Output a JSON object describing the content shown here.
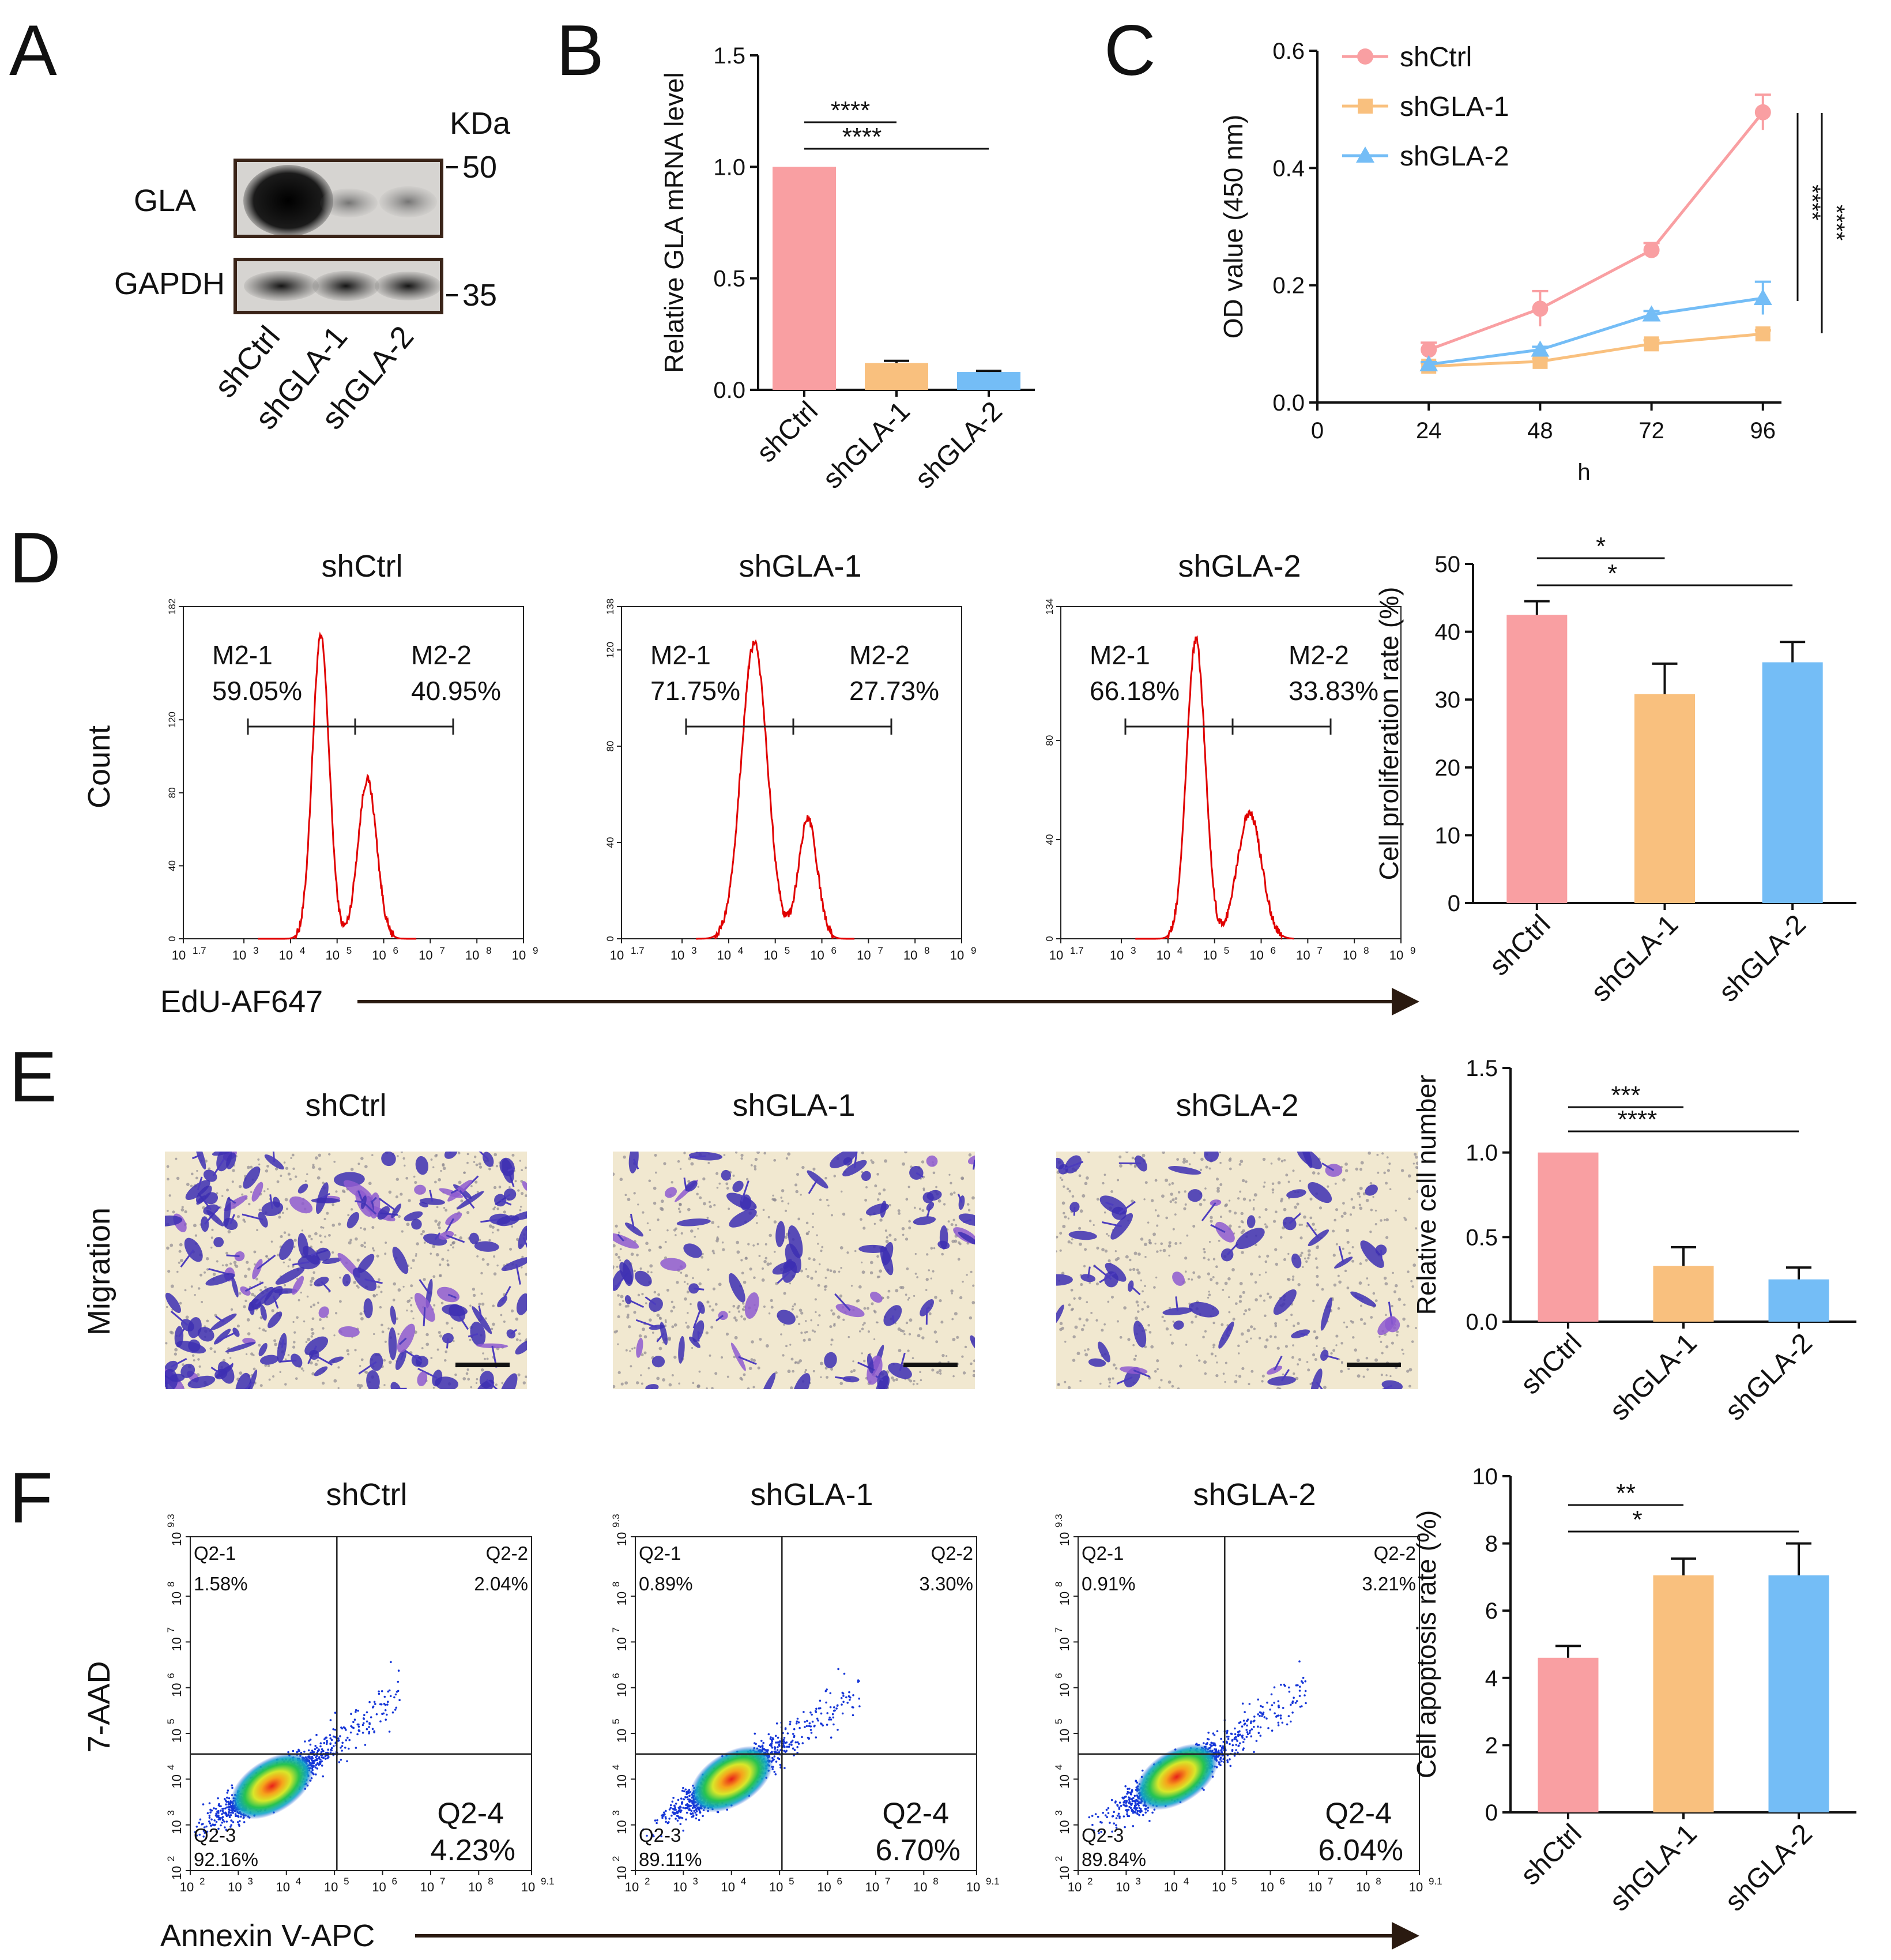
{
  "panel_letters": {
    "A": "A",
    "B": "B",
    "C": "C",
    "D": "D",
    "E": "E",
    "F": "F"
  },
  "colors": {
    "shCtrl": "#f99fa2",
    "shGLA1": "#f9c07e",
    "shGLA2": "#74bdf6",
    "hist": "#e00000",
    "arrow": "#2a1a10"
  },
  "panel_a": {
    "kda_label": "KDa",
    "bands": [
      "GLA",
      "GAPDH"
    ],
    "markers": [
      "50",
      "35"
    ],
    "lanes": [
      "shCtrl",
      "shGLA-1",
      "shGLA-2"
    ]
  },
  "panel_d": {
    "x_axis_label": "EdU-AF647",
    "y_axis_label": "Count"
  },
  "panel_e": {
    "row_label": "Migration"
  },
  "panel_f": {
    "x_axis_label": "Annexin V-APC",
    "y_axis_label": "7-AAD"
  },
  "chart_data": [
    {
      "id": "B",
      "type": "bar",
      "categories": [
        "shCtrl",
        "shGLA-1",
        "shGLA-2"
      ],
      "values": [
        1.0,
        0.12,
        0.08
      ],
      "errors": [
        0,
        0.01,
        0.005
      ],
      "ylabel": "Relative GLA mRNA level",
      "ylim": [
        0,
        1.5
      ],
      "yticks": [
        "0.0",
        "0.5",
        "1.0",
        "1.5"
      ],
      "significance": [
        {
          "from": 0,
          "to": 1,
          "label": "****"
        },
        {
          "from": 0,
          "to": 2,
          "label": "****"
        }
      ]
    },
    {
      "id": "C",
      "type": "line",
      "x": [
        24,
        48,
        72,
        96
      ],
      "xticks": [
        "0",
        "24",
        "48",
        "72",
        "96"
      ],
      "xlabel": "h",
      "ylabel": "OD value (450 nm)",
      "ylim": [
        0,
        0.6
      ],
      "yticks": [
        "0.0",
        "0.2",
        "0.4",
        "0.6"
      ],
      "series": [
        {
          "name": "shCtrl",
          "marker": "circle",
          "values": [
            0.09,
            0.16,
            0.26,
            0.495
          ],
          "errors": [
            0.012,
            0.03,
            0.012,
            0.03
          ]
        },
        {
          "name": "shGLA-1",
          "marker": "square",
          "values": [
            0.062,
            0.07,
            0.1,
            0.117
          ],
          "errors": [
            0.005,
            0.005,
            0.006,
            0.006
          ]
        },
        {
          "name": "shGLA-2",
          "marker": "triangle",
          "values": [
            0.065,
            0.09,
            0.15,
            0.178
          ],
          "errors": [
            0.004,
            0.005,
            0.006,
            0.028
          ]
        }
      ],
      "significance": [
        {
          "label": "****"
        },
        {
          "label": "****"
        }
      ]
    },
    {
      "id": "D-hist",
      "type": "area",
      "xlabel": "EdU-AF647",
      "ylabel": "Count",
      "xticks": [
        "10 1.7",
        "10 3",
        "10 4",
        "10 5",
        "10 6",
        "10 7",
        "10 8",
        "10 9"
      ],
      "panels": [
        {
          "title": "shCtrl",
          "ymax": "182",
          "yticks": [
            "0",
            "40",
            "80",
            "120",
            "182"
          ],
          "gate_left": "M2-1",
          "gate_left_pct": "59.05%",
          "gate_right": "M2-2",
          "gate_right_pct": "40.95%",
          "peaks": [
            {
              "pos": 4.65,
              "height": 0.91,
              "width": 0.18
            },
            {
              "pos": 5.65,
              "height": 0.48,
              "width": 0.2
            }
          ]
        },
        {
          "title": "shGLA-1",
          "ymax": "138",
          "yticks": [
            "0",
            "40",
            "80",
            "120",
            "138"
          ],
          "gate_left": "M2-1",
          "gate_left_pct": "71.75%",
          "gate_right": "M2-2",
          "gate_right_pct": "27.73%",
          "peaks": [
            {
              "pos": 4.55,
              "height": 0.89,
              "width": 0.28
            },
            {
              "pos": 5.7,
              "height": 0.36,
              "width": 0.2
            }
          ]
        },
        {
          "title": "shGLA-2",
          "ymax": "134",
          "yticks": [
            "0",
            "40",
            "80",
            "134"
          ],
          "gate_left": "M2-1",
          "gate_left_pct": "66.18%",
          "gate_right": "M2-2",
          "gate_right_pct": "33.83%",
          "peaks": [
            {
              "pos": 4.6,
              "height": 0.9,
              "width": 0.2
            },
            {
              "pos": 5.75,
              "height": 0.38,
              "width": 0.26
            }
          ]
        }
      ]
    },
    {
      "id": "D-bar",
      "type": "bar",
      "categories": [
        "shCtrl",
        "shGLA-1",
        "shGLA-2"
      ],
      "values": [
        42.5,
        30.8,
        35.5
      ],
      "errors": [
        2.0,
        4.5,
        3.0
      ],
      "ylabel": "Cell proliferation rate (%)",
      "ylim": [
        0,
        50
      ],
      "yticks": [
        "0",
        "10",
        "20",
        "30",
        "40",
        "50"
      ],
      "significance": [
        {
          "from": 0,
          "to": 1,
          "label": "*"
        },
        {
          "from": 0,
          "to": 2,
          "label": "*"
        }
      ]
    },
    {
      "id": "E-images",
      "type": "table",
      "titles": [
        "shCtrl",
        "shGLA-1",
        "shGLA-2"
      ],
      "density": [
        1.0,
        0.5,
        0.35
      ]
    },
    {
      "id": "E-bar",
      "type": "bar",
      "categories": [
        "shCtrl",
        "shGLA-1",
        "shGLA-2"
      ],
      "values": [
        1.0,
        0.33,
        0.25
      ],
      "errors": [
        0,
        0.11,
        0.07
      ],
      "ylabel": "Relative cell number",
      "ylim": [
        0,
        1.5
      ],
      "yticks": [
        "0.0",
        "0.5",
        "1.0",
        "1.5"
      ],
      "significance": [
        {
          "from": 0,
          "to": 1,
          "label": "***"
        },
        {
          "from": 0,
          "to": 2,
          "label": "****"
        }
      ]
    },
    {
      "id": "F-scatter",
      "type": "scatter",
      "xlabel": "Annexin V-APC",
      "ylabel": "7-AAD",
      "xticks": [
        "10 2",
        "10 3",
        "10 4",
        "10 5",
        "10 6",
        "10 7",
        "10 8",
        "10 9.1"
      ],
      "yticks": [
        "10 2",
        "10 3",
        "10 4",
        "10 5",
        "10 6",
        "10 7",
        "10 8",
        "10 9.3"
      ],
      "panels": [
        {
          "title": "shCtrl",
          "q1": "Q2-1",
          "q1_pct": "1.58%",
          "q2": "Q2-2",
          "q2_pct": "2.04%",
          "q3": "Q2-3",
          "q3_pct": "92.16%",
          "q4": "Q2-4",
          "q4_pct": "4.23%",
          "center": [
            3.6,
            3.8
          ]
        },
        {
          "title": "shGLA-1",
          "q1": "Q2-1",
          "q1_pct": "0.89%",
          "q2": "Q2-2",
          "q2_pct": "3.30%",
          "q3": "Q2-3",
          "q3_pct": "89.11%",
          "q4": "Q2-4",
          "q4_pct": "6.70%",
          "center": [
            3.9,
            3.95
          ]
        },
        {
          "title": "shGLA-2",
          "q1": "Q2-1",
          "q1_pct": "0.91%",
          "q2": "Q2-2",
          "q2_pct": "3.21%",
          "q3": "Q2-3",
          "q3_pct": "89.84%",
          "q4": "Q2-4",
          "q4_pct": "6.04%",
          "center": [
            3.95,
            4.0
          ]
        }
      ]
    },
    {
      "id": "F-bar",
      "type": "bar",
      "categories": [
        "shCtrl",
        "shGLA-1",
        "shGLA-2"
      ],
      "values": [
        4.6,
        7.05,
        7.05
      ],
      "errors": [
        0.35,
        0.5,
        0.95
      ],
      "ylabel": "Cell apoptosis rate (%)",
      "ylim": [
        0,
        10
      ],
      "yticks": [
        "0",
        "2",
        "4",
        "6",
        "8",
        "10"
      ],
      "significance": [
        {
          "from": 0,
          "to": 1,
          "label": "**"
        },
        {
          "from": 0,
          "to": 2,
          "label": "*"
        }
      ]
    }
  ]
}
